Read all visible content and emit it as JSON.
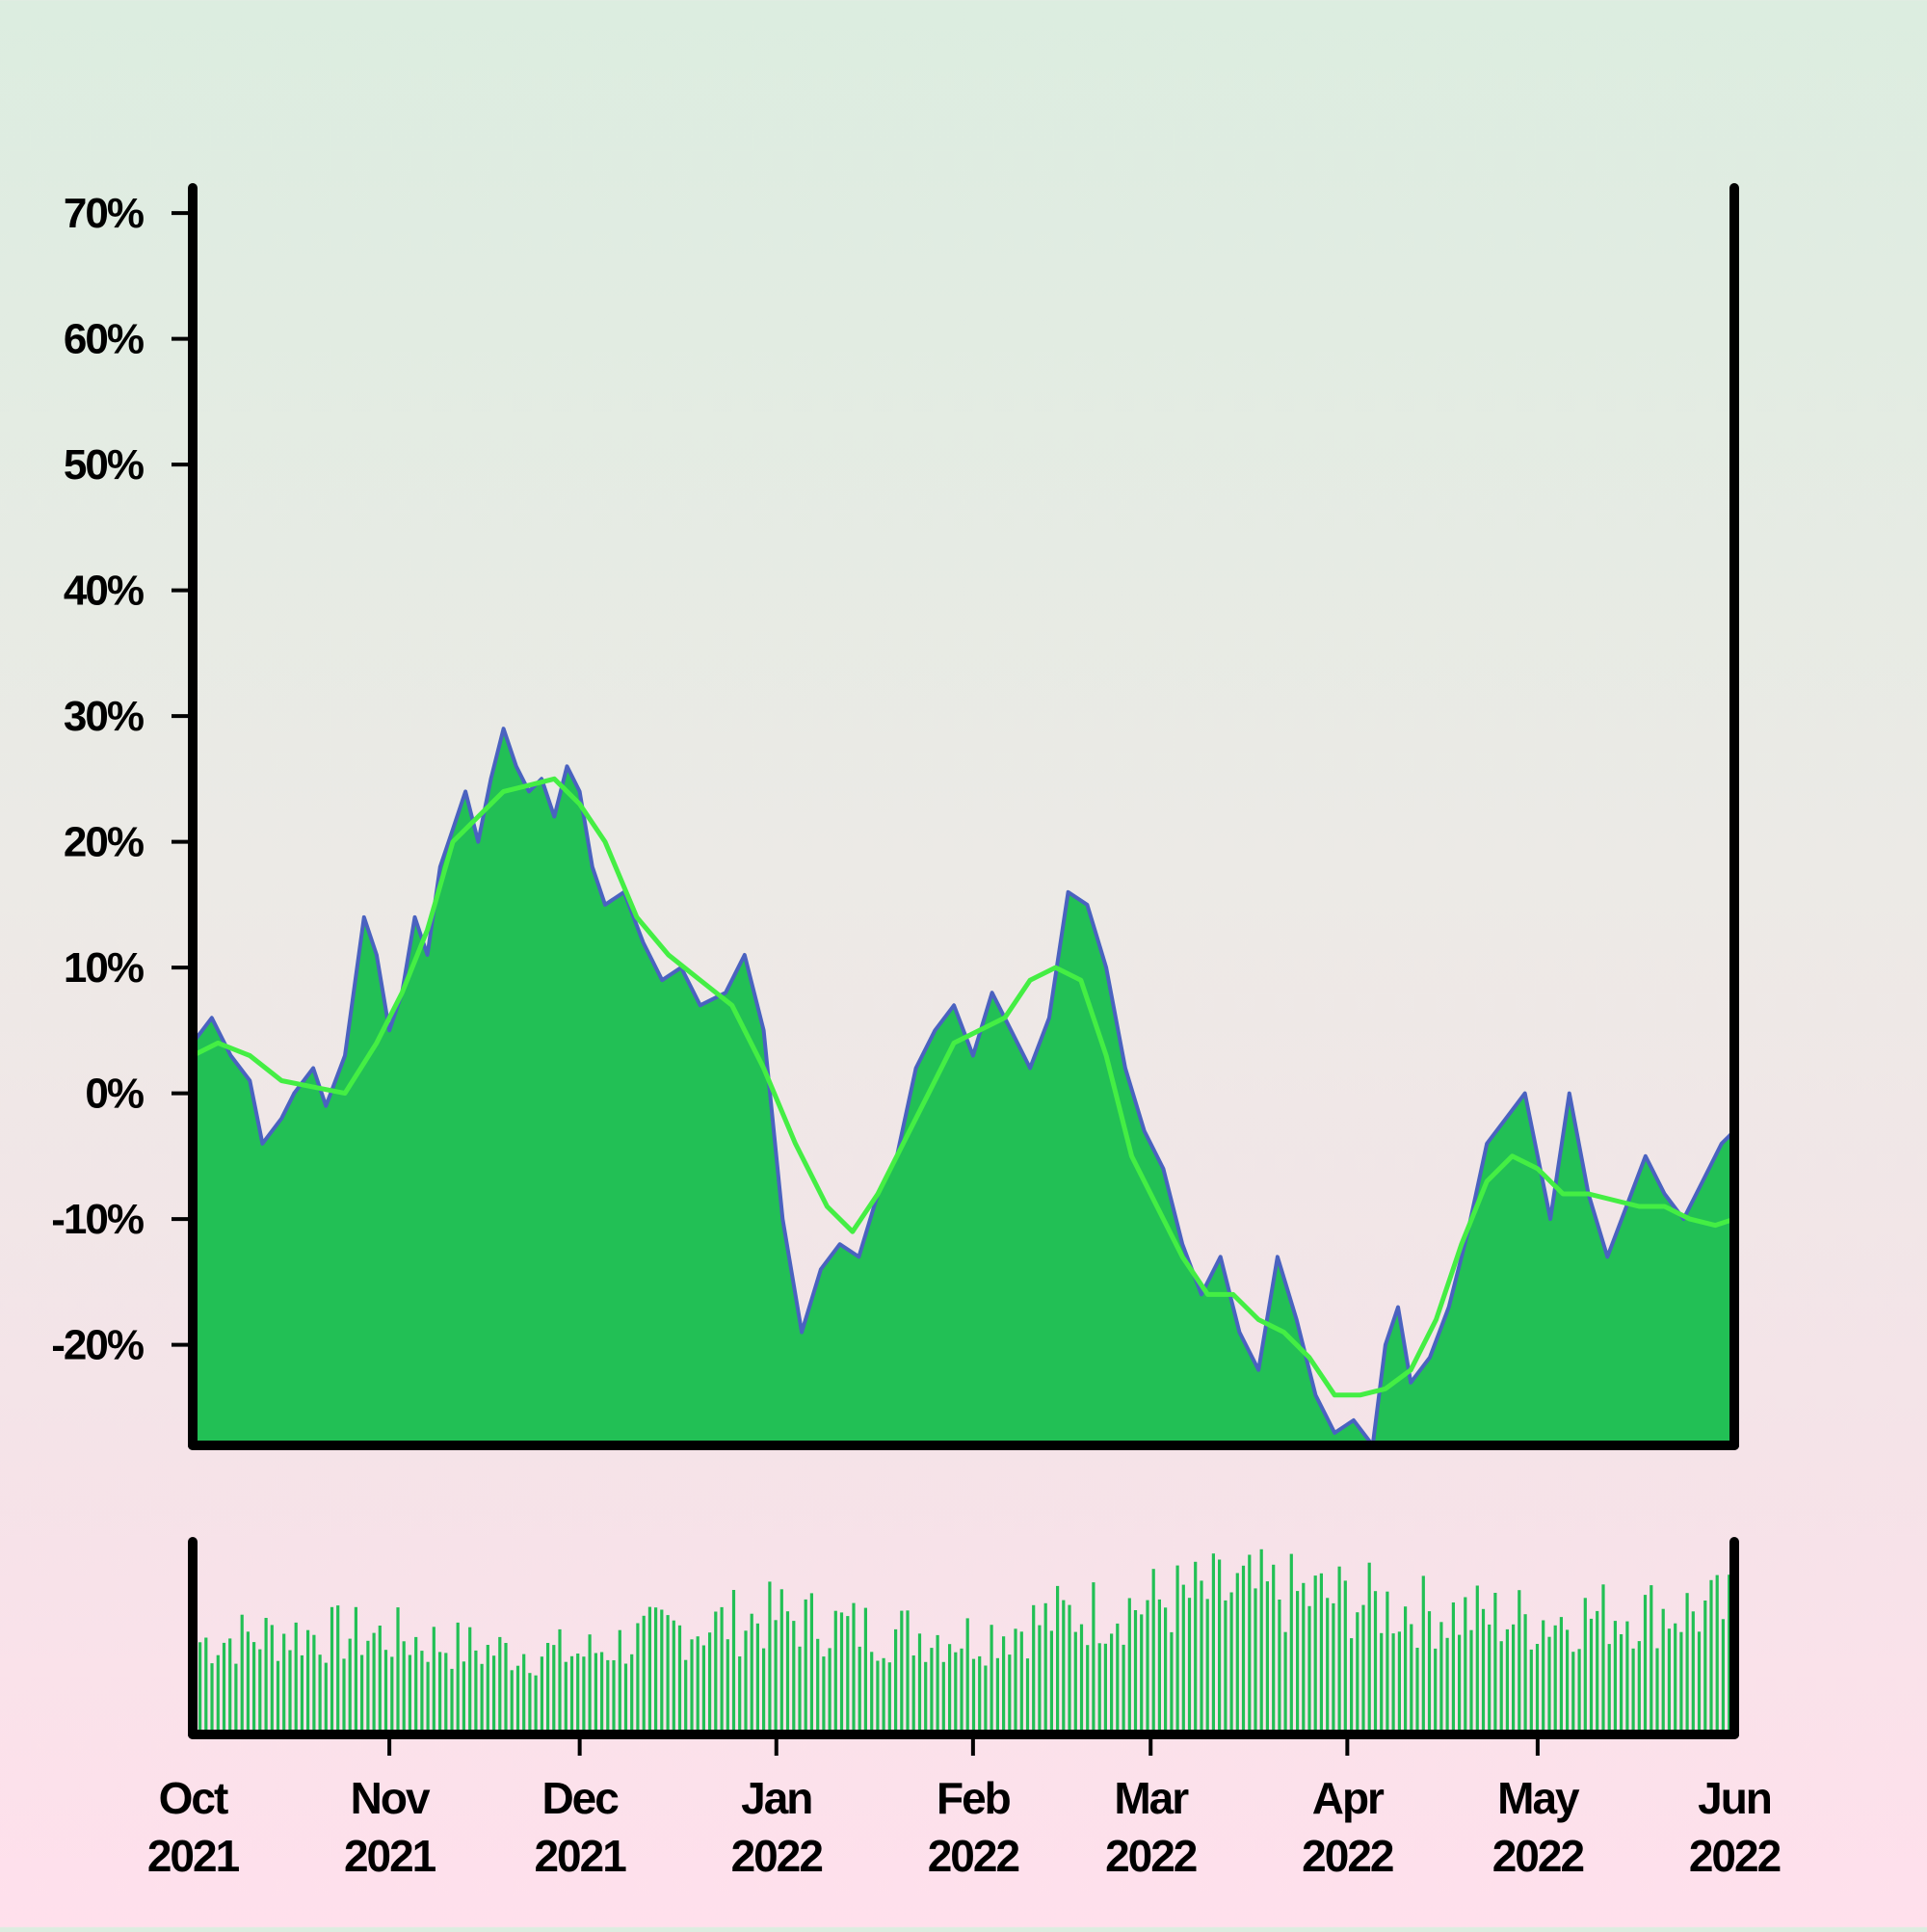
{
  "chart_data": {
    "type": "area",
    "title": "",
    "xlabel": "",
    "ylabel": "",
    "x_range": [
      "2021-10-01",
      "2022-06-01"
    ],
    "ylim": [
      -28,
      72
    ],
    "y_ticks": [
      -20,
      -10,
      0,
      10,
      20,
      30,
      40,
      50,
      60,
      70
    ],
    "y_tick_labels": [
      "-20%",
      "-10%",
      "0%",
      "10%",
      "20%",
      "30%",
      "40%",
      "50%",
      "60%",
      "70%"
    ],
    "x_ticks": [
      "2021-10-01",
      "2021-11-01",
      "2021-12-01",
      "2022-01-01",
      "2022-02-01",
      "2022-03-01",
      "2022-04-01",
      "2022-05-01",
      "2022-06-01"
    ],
    "x_tick_labels": [
      {
        "month": "Oct",
        "year": "2021"
      },
      {
        "month": "Nov",
        "year": "2021"
      },
      {
        "month": "Dec",
        "year": "2021"
      },
      {
        "month": "Jan",
        "year": "2022"
      },
      {
        "month": "Feb",
        "year": "2022"
      },
      {
        "month": "Mar",
        "year": "2022"
      },
      {
        "month": "Apr",
        "year": "2022"
      },
      {
        "month": "May",
        "year": "2022"
      },
      {
        "month": "Jun",
        "year": "2022"
      }
    ],
    "grid": false,
    "legend": "none",
    "colors": {
      "area_fill": "#22c055",
      "price_line": "#4a62c0",
      "moving_average": "#44ee44",
      "volume": "#22c055",
      "axis": "#000000"
    },
    "series": [
      {
        "points": [
          [
            "2021-10-01",
            4
          ],
          [
            "2021-10-04",
            6
          ],
          [
            "2021-10-07",
            3
          ],
          [
            "2021-10-10",
            1
          ],
          [
            "2021-10-12",
            -4
          ],
          [
            "2021-10-15",
            -2
          ],
          [
            "2021-10-17",
            0
          ],
          [
            "2021-10-20",
            2
          ],
          [
            "2021-10-22",
            -1
          ],
          [
            "2021-10-25",
            3
          ],
          [
            "2021-10-28",
            14
          ],
          [
            "2021-10-30",
            11
          ],
          [
            "2021-11-01",
            5
          ],
          [
            "2021-11-03",
            8
          ],
          [
            "2021-11-05",
            14
          ],
          [
            "2021-11-07",
            11
          ],
          [
            "2021-11-09",
            18
          ],
          [
            "2021-11-11",
            21
          ],
          [
            "2021-11-13",
            24
          ],
          [
            "2021-11-15",
            20
          ],
          [
            "2021-11-17",
            25
          ],
          [
            "2021-11-19",
            29
          ],
          [
            "2021-11-21",
            26
          ],
          [
            "2021-11-23",
            24
          ],
          [
            "2021-11-25",
            25
          ],
          [
            "2021-11-27",
            22
          ],
          [
            "2021-11-29",
            26
          ],
          [
            "2021-12-01",
            24
          ],
          [
            "2021-12-03",
            18
          ],
          [
            "2021-12-05",
            15
          ],
          [
            "2021-12-08",
            16
          ],
          [
            "2021-12-11",
            12
          ],
          [
            "2021-12-14",
            9
          ],
          [
            "2021-12-17",
            10
          ],
          [
            "2021-12-20",
            7
          ],
          [
            "2021-12-24",
            8
          ],
          [
            "2021-12-27",
            11
          ],
          [
            "2021-12-30",
            5
          ],
          [
            "2022-01-02",
            -10
          ],
          [
            "2022-01-05",
            -19
          ],
          [
            "2022-01-08",
            -14
          ],
          [
            "2022-01-11",
            -12
          ],
          [
            "2022-01-14",
            -13
          ],
          [
            "2022-01-17",
            -8
          ],
          [
            "2022-01-20",
            -5
          ],
          [
            "2022-01-23",
            2
          ],
          [
            "2022-01-26",
            5
          ],
          [
            "2022-01-29",
            7
          ],
          [
            "2022-02-01",
            3
          ],
          [
            "2022-02-04",
            8
          ],
          [
            "2022-02-07",
            5
          ],
          [
            "2022-02-10",
            2
          ],
          [
            "2022-02-13",
            6
          ],
          [
            "2022-02-16",
            16
          ],
          [
            "2022-02-19",
            15
          ],
          [
            "2022-02-22",
            10
          ],
          [
            "2022-02-25",
            2
          ],
          [
            "2022-02-28",
            -3
          ],
          [
            "2022-03-03",
            -6
          ],
          [
            "2022-03-06",
            -12
          ],
          [
            "2022-03-09",
            -16
          ],
          [
            "2022-03-12",
            -13
          ],
          [
            "2022-03-15",
            -19
          ],
          [
            "2022-03-18",
            -22
          ],
          [
            "2022-03-21",
            -13
          ],
          [
            "2022-03-24",
            -18
          ],
          [
            "2022-03-27",
            -24
          ],
          [
            "2022-03-30",
            -27
          ],
          [
            "2022-04-02",
            -26
          ],
          [
            "2022-04-05",
            -28
          ],
          [
            "2022-04-07",
            -20
          ],
          [
            "2022-04-09",
            -17
          ],
          [
            "2022-04-11",
            -23
          ],
          [
            "2022-04-14",
            -21
          ],
          [
            "2022-04-17",
            -17
          ],
          [
            "2022-04-20",
            -11
          ],
          [
            "2022-04-23",
            -4
          ],
          [
            "2022-04-26",
            -2
          ],
          [
            "2022-04-29",
            0
          ],
          [
            "2022-05-01",
            -5
          ],
          [
            "2022-05-03",
            -10
          ],
          [
            "2022-05-06",
            0
          ],
          [
            "2022-05-09",
            -8
          ],
          [
            "2022-05-12",
            -13
          ],
          [
            "2022-05-15",
            -9
          ],
          [
            "2022-05-18",
            -5
          ],
          [
            "2022-05-21",
            -8
          ],
          [
            "2022-05-24",
            -10
          ],
          [
            "2022-05-27",
            -7
          ],
          [
            "2022-05-30",
            -4
          ],
          [
            "2022-06-01",
            -3
          ]
        ]
      },
      {
        "points": [
          [
            "2021-10-01",
            3
          ],
          [
            "2021-10-05",
            4
          ],
          [
            "2021-10-10",
            3
          ],
          [
            "2021-10-15",
            1
          ],
          [
            "2021-10-20",
            0.5
          ],
          [
            "2021-10-25",
            0
          ],
          [
            "2021-10-30",
            4
          ],
          [
            "2021-11-03",
            8
          ],
          [
            "2021-11-07",
            13
          ],
          [
            "2021-11-11",
            20
          ],
          [
            "2021-11-15",
            22
          ],
          [
            "2021-11-19",
            24
          ],
          [
            "2021-11-23",
            24.5
          ],
          [
            "2021-11-27",
            25
          ],
          [
            "2021-12-01",
            23
          ],
          [
            "2021-12-05",
            20
          ],
          [
            "2021-12-10",
            14
          ],
          [
            "2021-12-15",
            11
          ],
          [
            "2021-12-20",
            9
          ],
          [
            "2021-12-25",
            7
          ],
          [
            "2021-12-30",
            2
          ],
          [
            "2022-01-04",
            -4
          ],
          [
            "2022-01-09",
            -9
          ],
          [
            "2022-01-13",
            -11
          ],
          [
            "2022-01-17",
            -8
          ],
          [
            "2022-01-21",
            -4
          ],
          [
            "2022-01-25",
            0
          ],
          [
            "2022-01-29",
            4
          ],
          [
            "2022-02-02",
            5
          ],
          [
            "2022-02-06",
            6
          ],
          [
            "2022-02-10",
            9
          ],
          [
            "2022-02-14",
            10
          ],
          [
            "2022-02-18",
            9
          ],
          [
            "2022-02-22",
            3
          ],
          [
            "2022-02-26",
            -5
          ],
          [
            "2022-03-02",
            -9
          ],
          [
            "2022-03-06",
            -13
          ],
          [
            "2022-03-10",
            -16
          ],
          [
            "2022-03-14",
            -16
          ],
          [
            "2022-03-18",
            -18
          ],
          [
            "2022-03-22",
            -19
          ],
          [
            "2022-03-26",
            -21
          ],
          [
            "2022-03-30",
            -24
          ],
          [
            "2022-04-03",
            -24
          ],
          [
            "2022-04-07",
            -23.5
          ],
          [
            "2022-04-11",
            -22
          ],
          [
            "2022-04-15",
            -18
          ],
          [
            "2022-04-19",
            -12
          ],
          [
            "2022-04-23",
            -7
          ],
          [
            "2022-04-27",
            -5
          ],
          [
            "2022-05-01",
            -6
          ],
          [
            "2022-05-05",
            -8
          ],
          [
            "2022-05-09",
            -8
          ],
          [
            "2022-05-13",
            -8.5
          ],
          [
            "2022-05-17",
            -9
          ],
          [
            "2022-05-21",
            -9
          ],
          [
            "2022-05-25",
            -10
          ],
          [
            "2022-05-29",
            -10.5
          ],
          [
            "2022-06-01",
            -10
          ]
        ]
      }
    ],
    "volume": {
      "points": [
        [
          "2021-10-01",
          55
        ],
        [
          "2021-10-15",
          60
        ],
        [
          "2021-11-01",
          58
        ],
        [
          "2021-11-15",
          50
        ],
        [
          "2021-12-01",
          48
        ],
        [
          "2021-12-15",
          62
        ],
        [
          "2022-01-01",
          70
        ],
        [
          "2022-01-15",
          62
        ],
        [
          "2022-02-01",
          58
        ],
        [
          "2022-02-15",
          70
        ],
        [
          "2022-03-01",
          78
        ],
        [
          "2022-03-15",
          85
        ],
        [
          "2022-04-01",
          80
        ],
        [
          "2022-04-15",
          72
        ],
        [
          "2022-05-01",
          68
        ],
        [
          "2022-05-15",
          72
        ],
        [
          "2022-06-01",
          74
        ]
      ],
      "ylim": [
        0,
        100
      ]
    }
  }
}
